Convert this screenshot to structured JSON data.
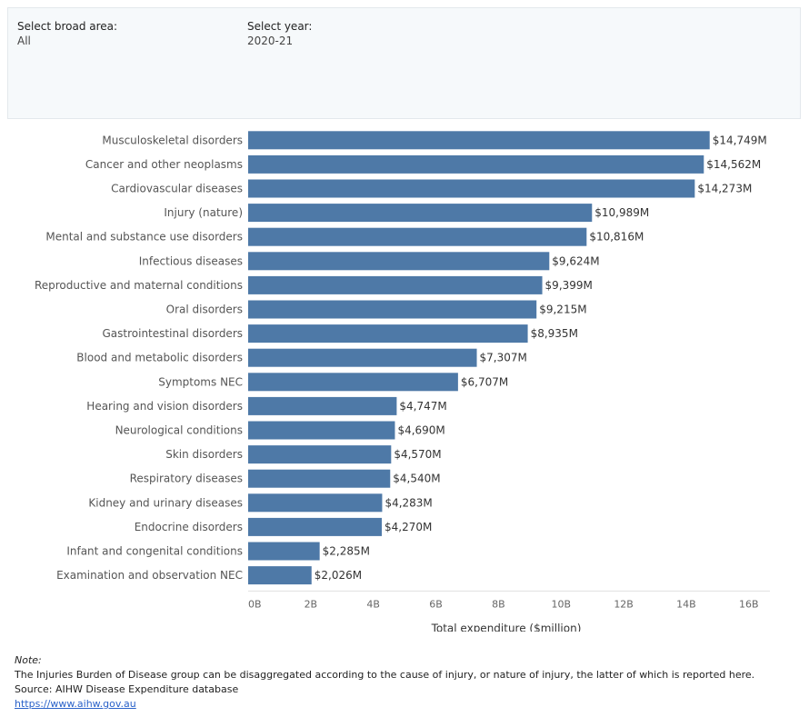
{
  "filters": {
    "broad_area": {
      "label": "Select broad area:",
      "value": "All"
    },
    "year": {
      "label": "Select year:",
      "value": "2020-21"
    }
  },
  "colors": {
    "bar": "#4e79a7",
    "axis_text": "#666666",
    "label_text": "#555555"
  },
  "chart_data": {
    "type": "bar",
    "orientation": "horizontal",
    "categories": [
      "Musculoskeletal disorders",
      "Cancer and other neoplasms",
      "Cardiovascular diseases",
      "Injury (nature)",
      "Mental and substance use disorders",
      "Infectious diseases",
      "Reproductive and maternal conditions",
      "Oral disorders",
      "Gastrointestinal disorders",
      "Blood and metabolic disorders",
      "Symptoms NEC",
      "Hearing and vision disorders",
      "Neurological conditions",
      "Skin disorders",
      "Respiratory diseases",
      "Kidney and urinary diseases",
      "Endocrine disorders",
      "Infant and congenital conditions",
      "Examination and observation NEC"
    ],
    "values": [
      14749,
      14562,
      14273,
      10989,
      10816,
      9624,
      9399,
      9215,
      8935,
      7307,
      6707,
      4747,
      4690,
      4570,
      4540,
      4283,
      4270,
      2285,
      2026
    ],
    "data_labels": [
      "$14,749M",
      "$14,562M",
      "$14,273M",
      "$10,989M",
      "$10,816M",
      "$9,624M",
      "$9,399M",
      "$9,215M",
      "$8,935M",
      "$7,307M",
      "$6,707M",
      "$4,747M",
      "$4,690M",
      "$4,570M",
      "$4,540M",
      "$4,283M",
      "$4,270M",
      "$2,285M",
      "$2,026M"
    ],
    "xlabel": "Total expenditure ($million)",
    "xlim": [
      0,
      16500
    ],
    "ticks": [
      0,
      2000,
      4000,
      6000,
      8000,
      10000,
      12000,
      14000,
      16000
    ],
    "tick_labels": [
      "0B",
      "2B",
      "4B",
      "6B",
      "8B",
      "10B",
      "12B",
      "14B",
      "16B"
    ],
    "grid": false
  },
  "notes": {
    "title": "Note:",
    "text": "The Injuries Burden of Disease group can be disaggregated according to the cause of injury, or nature of injury, the latter of which is reported here.",
    "source": "Source: AIHW Disease Expenditure database",
    "link": "https://www.aihw.gov.au"
  }
}
